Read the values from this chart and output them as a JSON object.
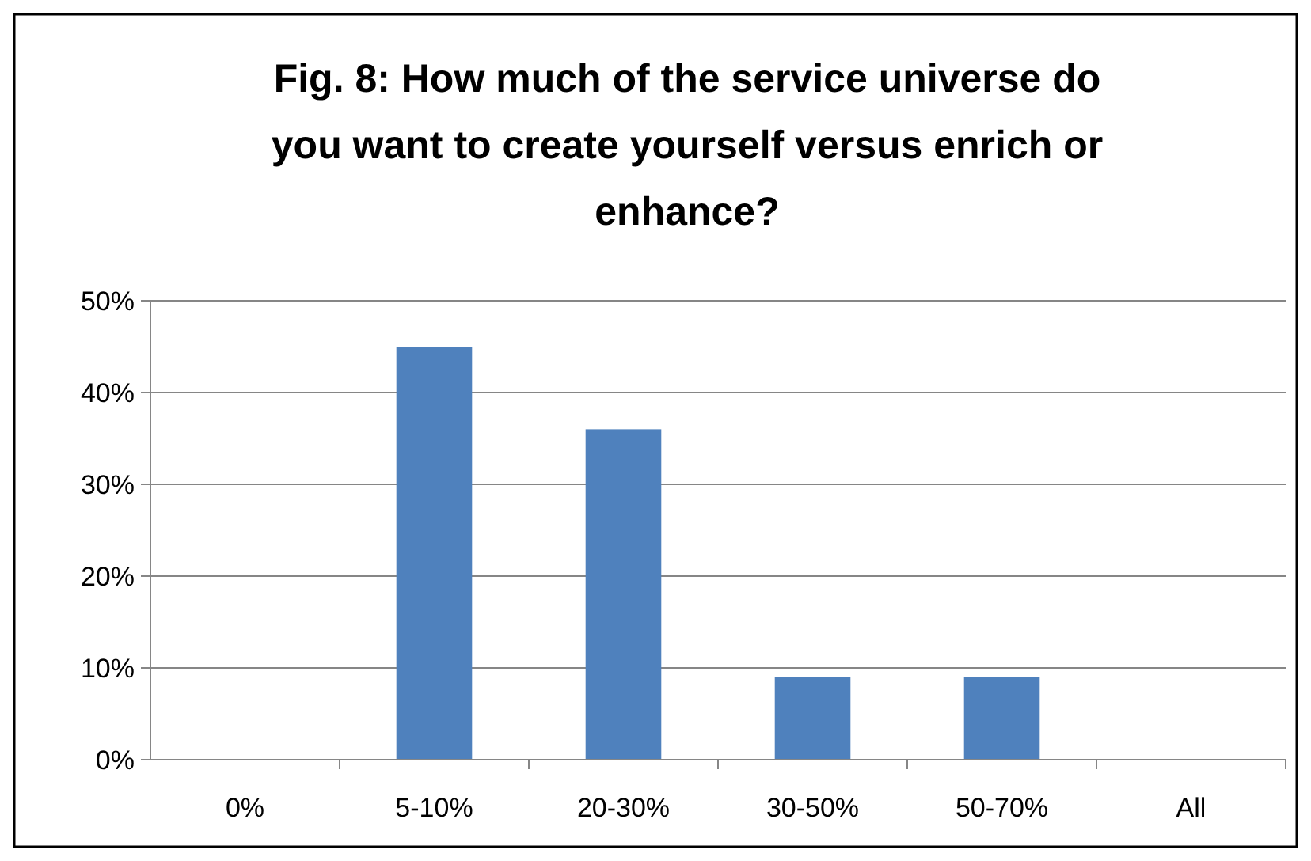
{
  "chart_data": {
    "type": "bar",
    "title": "Fig. 8: How much of the service universe do you want to create yourself versus enrich or enhance?",
    "categories": [
      "0%",
      "5-10%",
      "20-30%",
      "30-50%",
      "50-70%",
      "All"
    ],
    "values": [
      0,
      45,
      36,
      9,
      9,
      0
    ],
    "color": "#4f81bd",
    "ylim": [
      0,
      50
    ],
    "yticks": [
      {
        "value": 0,
        "label": "0%"
      },
      {
        "value": 10,
        "label": "10%"
      },
      {
        "value": 20,
        "label": "20%"
      },
      {
        "value": 30,
        "label": "30%"
      },
      {
        "value": 40,
        "label": "40%"
      },
      {
        "value": 50,
        "label": "50%"
      }
    ],
    "grid": "y"
  }
}
